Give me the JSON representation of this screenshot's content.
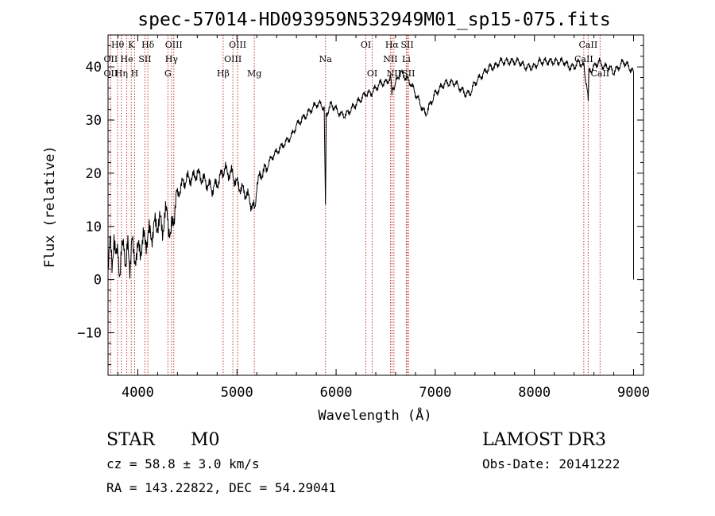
{
  "chart_data": {
    "type": "line",
    "title": "spec-57014-HD093959N532949M01_sp15-075.fits",
    "xlabel": "Wavelength (Å)",
    "ylabel": "Flux (relative)",
    "xlim": [
      3700,
      9100
    ],
    "ylim": [
      -18,
      46
    ],
    "x_ticks": [
      4000,
      5000,
      6000,
      7000,
      8000,
      9000
    ],
    "y_ticks": [
      -10,
      0,
      10,
      20,
      30,
      40
    ],
    "grid": false,
    "series": [
      {
        "color": "#000000",
        "x": [
          3700,
          3720,
          3740,
          3760,
          3780,
          3800,
          3820,
          3840,
          3860,
          3880,
          3900,
          3920,
          3940,
          3960,
          3980,
          4000,
          4050,
          4100,
          4150,
          4200,
          4250,
          4300,
          4330,
          4350,
          4400,
          4450,
          4500,
          4550,
          4600,
          4650,
          4700,
          4750,
          4800,
          4850,
          4880,
          4900,
          4950,
          5000,
          5050,
          5100,
          5150,
          5180,
          5200,
          5250,
          5300,
          5350,
          5400,
          5450,
          5500,
          5550,
          5600,
          5650,
          5700,
          5750,
          5800,
          5850,
          5880,
          5893,
          5900,
          5950,
          6000,
          6050,
          6100,
          6150,
          6200,
          6250,
          6300,
          6350,
          6400,
          6450,
          6500,
          6550,
          6563,
          6600,
          6650,
          6700,
          6750,
          6800,
          6850,
          6900,
          6950,
          7000,
          7050,
          7100,
          7150,
          7200,
          7250,
          7300,
          7350,
          7400,
          7450,
          7500,
          7550,
          7600,
          7650,
          7700,
          7750,
          7800,
          7850,
          7900,
          7950,
          8000,
          8050,
          8100,
          8150,
          8200,
          8250,
          8300,
          8350,
          8400,
          8450,
          8500,
          8542,
          8550,
          8600,
          8650,
          8700,
          8750,
          8800,
          8850,
          8900,
          8950,
          9000
        ],
        "y": [
          4,
          7,
          2,
          9,
          3,
          6,
          1,
          5,
          8,
          2,
          6,
          3,
          7,
          4,
          5,
          5,
          7,
          8,
          9,
          11,
          10,
          13,
          7,
          11,
          16,
          18,
          19,
          19,
          20,
          19,
          18,
          17,
          18,
          20,
          21,
          20,
          20,
          18,
          17,
          16,
          14,
          13,
          18,
          20,
          21,
          23,
          24,
          25,
          26,
          27,
          29,
          30,
          31,
          32,
          33,
          33,
          32,
          14,
          31,
          33,
          32,
          31,
          31,
          32,
          33,
          34,
          35,
          35,
          36,
          37,
          37,
          38,
          35,
          37,
          39,
          38,
          37,
          35,
          33,
          31,
          33,
          35,
          36,
          37,
          37,
          37,
          36,
          35,
          35,
          37,
          38,
          39,
          40,
          40,
          41,
          41,
          41,
          41,
          41,
          40,
          40,
          40,
          41,
          41,
          41,
          41,
          41,
          41,
          40,
          40,
          41,
          40,
          34,
          39,
          40,
          41,
          40,
          40,
          39,
          40,
          41,
          40,
          39
        ]
      }
    ],
    "spectral_lines": [
      {
        "label": "Hθ",
        "x": 3797,
        "row": 0
      },
      {
        "label": "K",
        "x": 3934,
        "row": 0
      },
      {
        "label": "Hδ",
        "x": 4102,
        "row": 0
      },
      {
        "label": "OIII",
        "x": 4363,
        "row": 0
      },
      {
        "label": "OIII",
        "x": 5007,
        "row": 0
      },
      {
        "label": "OI",
        "x": 6300,
        "row": 0
      },
      {
        "label": "Hα",
        "x": 6563,
        "row": 0
      },
      {
        "label": "SII",
        "x": 6717,
        "row": 0
      },
      {
        "label": "CaII",
        "x": 8542,
        "row": 0
      },
      {
        "label": "OII",
        "x": 3727,
        "row": 1
      },
      {
        "label": "He",
        "x": 3889,
        "row": 1
      },
      {
        "label": "SII",
        "x": 4072,
        "row": 1
      },
      {
        "label": "Hγ",
        "x": 4340,
        "row": 1
      },
      {
        "label": "OIII",
        "x": 4959,
        "row": 1
      },
      {
        "label": "Na",
        "x": 5893,
        "row": 1
      },
      {
        "label": "NII",
        "x": 6548,
        "row": 1
      },
      {
        "label": "Li",
        "x": 6708,
        "row": 1
      },
      {
        "label": "CaII",
        "x": 8498,
        "row": 1
      },
      {
        "label": "OII",
        "x": 3727,
        "row": 2
      },
      {
        "label": "Hη",
        "x": 3835,
        "row": 2
      },
      {
        "label": "H",
        "x": 3968,
        "row": 2
      },
      {
        "label": "G",
        "x": 4304,
        "row": 2
      },
      {
        "label": "Hβ",
        "x": 4861,
        "row": 2
      },
      {
        "label": "Mg",
        "x": 5175,
        "row": 2
      },
      {
        "label": "OI",
        "x": 6364,
        "row": 2
      },
      {
        "label": "NII",
        "x": 6583,
        "row": 2
      },
      {
        "label": "SII",
        "x": 6731,
        "row": 2
      },
      {
        "label": "CaII",
        "x": 8662,
        "row": 2
      }
    ]
  },
  "info": {
    "object_class": "STAR",
    "subclass": "M0",
    "survey": "LAMOST DR3",
    "redshift": "cz = 58.8 ± 3.0 km/s",
    "obs_date": "Obs-Date: 20141222",
    "coords": "RA = 143.22822, DEC =  54.29041"
  }
}
